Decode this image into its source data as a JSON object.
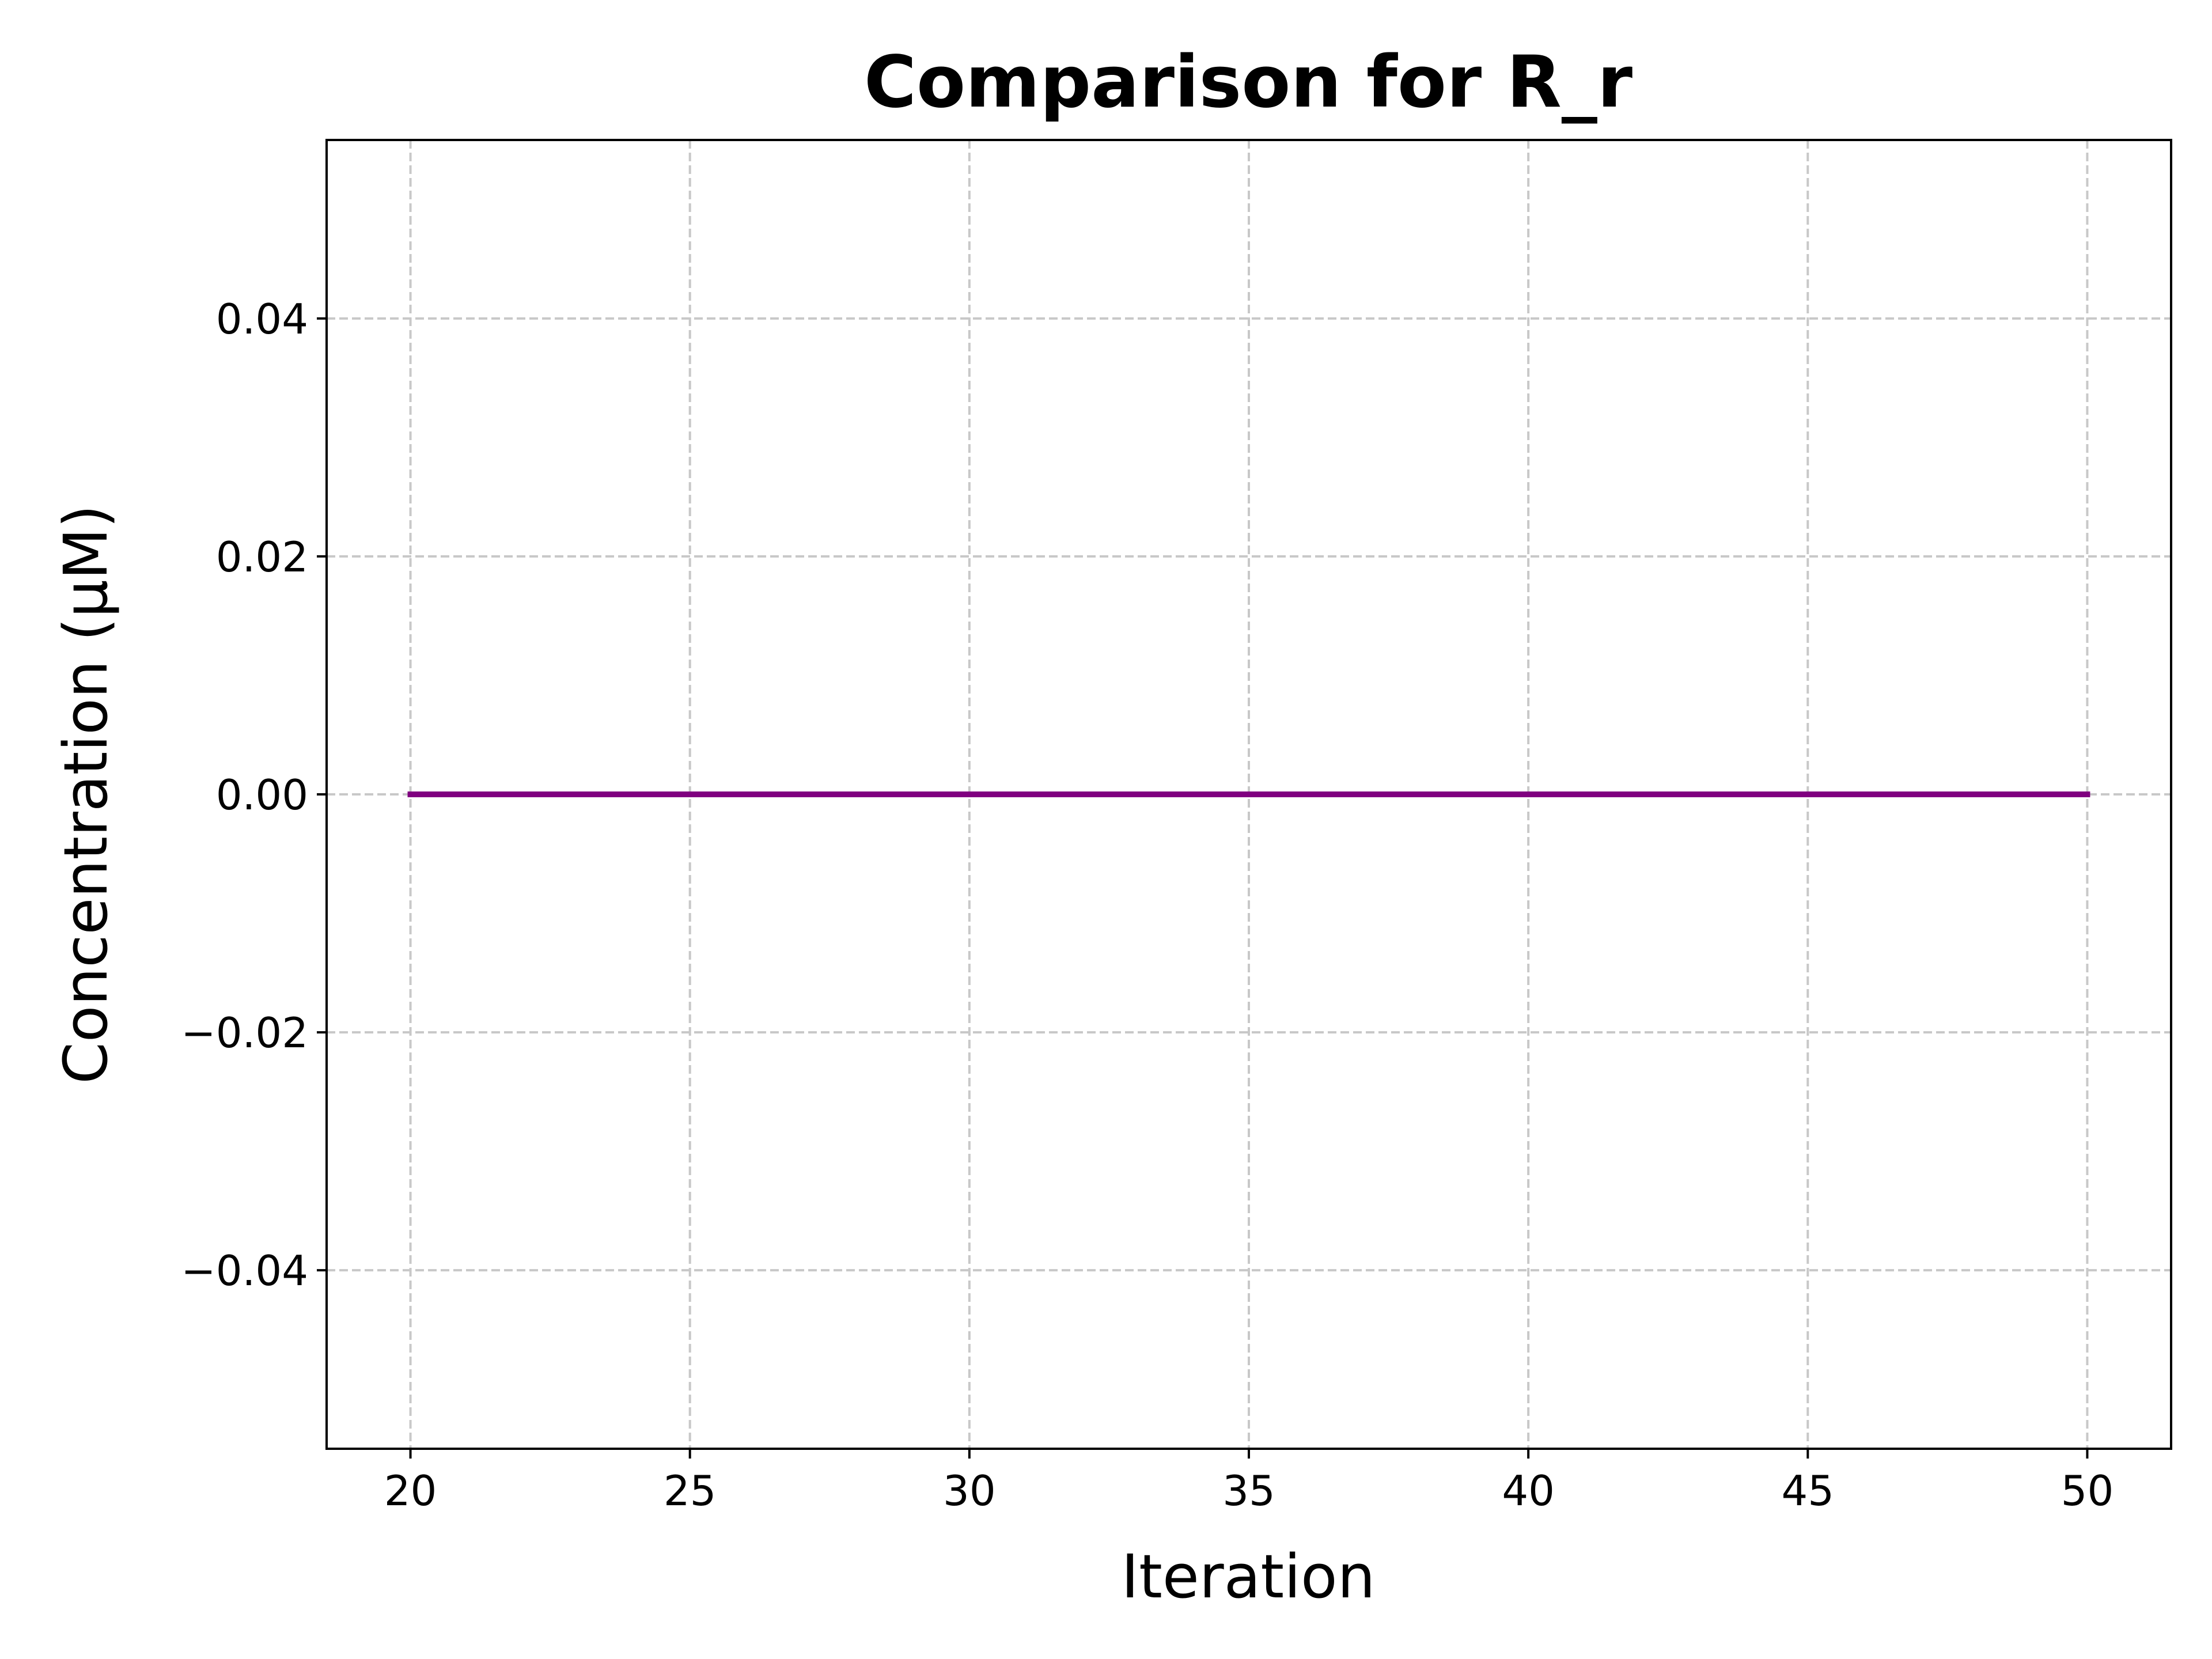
{
  "chart_data": {
    "type": "line",
    "title": "Comparison for R_r",
    "xlabel": "Iteration",
    "ylabel": "Concentration (μM)",
    "xlim": [
      18.5,
      51.5
    ],
    "ylim": [
      -0.055,
      0.055
    ],
    "x_ticks": [
      20,
      25,
      30,
      35,
      40,
      45,
      50
    ],
    "x_tick_labels": [
      "20",
      "25",
      "30",
      "35",
      "40",
      "45",
      "50"
    ],
    "y_ticks": [
      -0.04,
      -0.02,
      0.0,
      0.02,
      0.04
    ],
    "y_tick_labels": [
      "−0.04",
      "−0.02",
      "0.00",
      "0.02",
      "0.04"
    ],
    "grid": true,
    "series": [
      {
        "color": "#800080",
        "x": [
          20,
          50
        ],
        "y": [
          0.0,
          0.0
        ]
      }
    ]
  }
}
